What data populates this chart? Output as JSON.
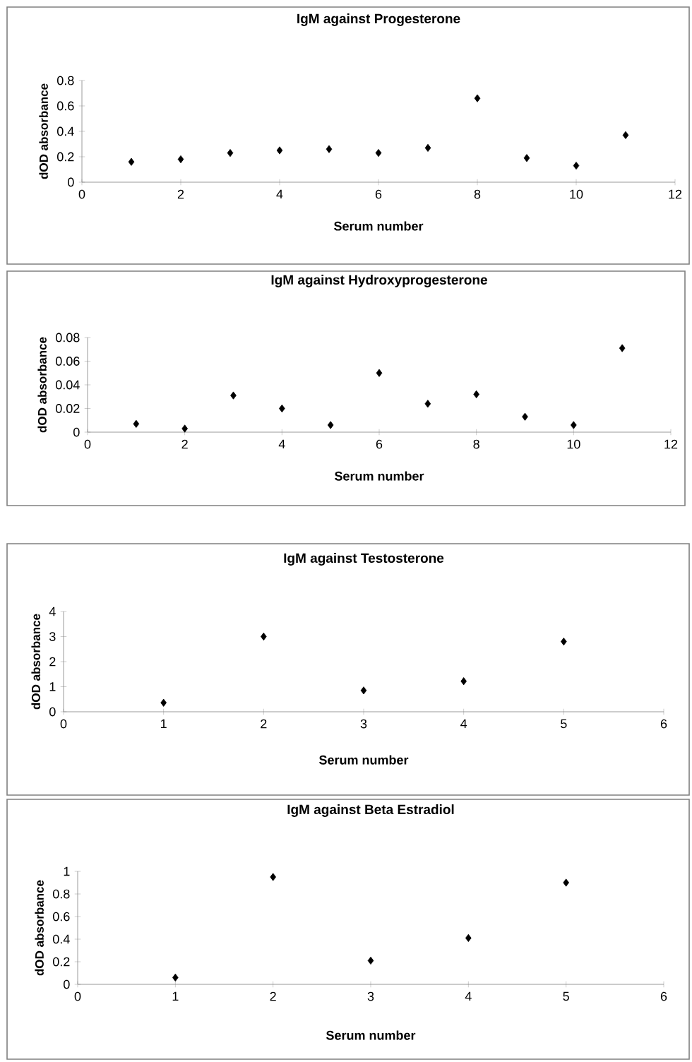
{
  "chart_data": [
    {
      "type": "scatter",
      "title": "IgM against Progesterone",
      "xlabel": "Serum number",
      "ylabel": "dOD absorbance",
      "x": [
        1,
        2,
        3,
        4,
        5,
        6,
        7,
        8,
        9,
        10,
        11
      ],
      "values": [
        0.16,
        0.18,
        0.23,
        0.25,
        0.26,
        0.23,
        0.27,
        0.66,
        0.19,
        0.13,
        0.37
      ],
      "color": "#000000",
      "marker": "diamond",
      "xlim": [
        0,
        12
      ],
      "ylim": [
        0,
        0.8
      ],
      "xticks": [
        0,
        2,
        4,
        6,
        8,
        10,
        12
      ],
      "yticks": [
        0,
        0.2,
        0.4,
        0.6,
        0.8
      ]
    },
    {
      "type": "scatter",
      "title": "IgM against Hydroxyprogesterone",
      "xlabel": "Serum number",
      "ylabel": "dOD absorbance",
      "x": [
        1,
        2,
        3,
        4,
        5,
        6,
        7,
        8,
        9,
        10,
        11
      ],
      "values": [
        0.007,
        0.003,
        0.031,
        0.02,
        0.006,
        0.05,
        0.024,
        0.032,
        0.013,
        0.006,
        0.071
      ],
      "color": "#000000",
      "marker": "diamond",
      "xlim": [
        0,
        12
      ],
      "ylim": [
        0,
        0.08
      ],
      "xticks": [
        0,
        2,
        4,
        6,
        8,
        10,
        12
      ],
      "yticks": [
        0,
        0.02,
        0.04,
        0.06,
        0.08
      ]
    },
    {
      "type": "scatter",
      "title": "IgM against Testosterone",
      "xlabel": "Serum number",
      "ylabel": "dOD absorbance",
      "x": [
        1,
        2,
        3,
        4,
        5
      ],
      "values": [
        0.36,
        3.0,
        0.85,
        1.22,
        2.8
      ],
      "color": "#000000",
      "marker": "diamond",
      "xlim": [
        0,
        6
      ],
      "ylim": [
        0,
        4
      ],
      "xticks": [
        0,
        1,
        2,
        3,
        4,
        5,
        6
      ],
      "yticks": [
        0,
        1,
        2,
        3,
        4
      ]
    },
    {
      "type": "scatter",
      "title": "IgM against Beta Estradiol",
      "xlabel": "Serum number",
      "ylabel": "dOD absorbance",
      "x": [
        1,
        2,
        3,
        4,
        5
      ],
      "values": [
        0.06,
        0.95,
        0.21,
        0.41,
        0.9
      ],
      "color": "#000000",
      "marker": "diamond",
      "xlim": [
        0,
        6
      ],
      "ylim": [
        0,
        1
      ],
      "xticks": [
        0,
        1,
        2,
        3,
        4,
        5,
        6
      ],
      "yticks": [
        0,
        0.2,
        0.4,
        0.6,
        0.8,
        1
      ]
    }
  ]
}
